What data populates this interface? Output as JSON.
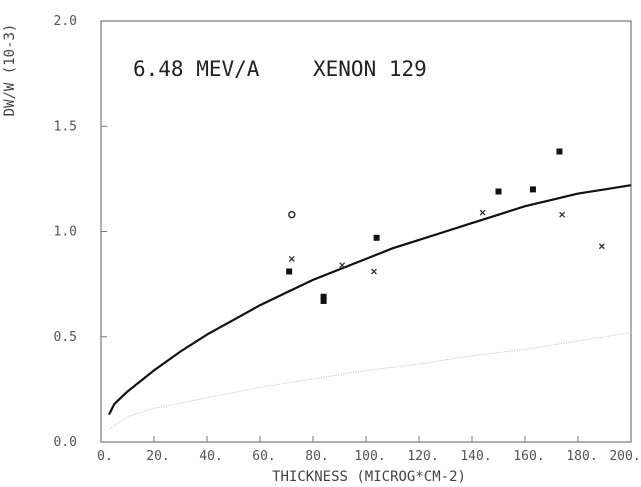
{
  "chart_data": {
    "type": "scatter",
    "xlabel": "THICKNESS (MICROG*CM-2)",
    "ylabel": "DW/W (10-3)",
    "annotation": {
      "energy": "6.48 MEV/A",
      "ion": "XENON 129"
    },
    "xlim": [
      0,
      200
    ],
    "ylim": [
      0,
      2.0
    ],
    "x_ticks": [
      "0.",
      "20.",
      "40.",
      "60.",
      "80.",
      "100.",
      "120.",
      "140.",
      "160.",
      "180.",
      "200."
    ],
    "y_ticks": [
      "0.0",
      "0.5",
      "1.0",
      "1.5",
      "2.0"
    ],
    "grid": false,
    "series": [
      {
        "marker": "filled-square",
        "color": "#111111",
        "points": [
          [
            71,
            0.81
          ],
          [
            84,
            0.69
          ],
          [
            84,
            0.67
          ],
          [
            104,
            0.97
          ],
          [
            150,
            1.19
          ],
          [
            163,
            1.2
          ],
          [
            173,
            1.38
          ]
        ]
      },
      {
        "marker": "cross",
        "color": "#333333",
        "points": [
          [
            72,
            0.87
          ],
          [
            91,
            0.84
          ],
          [
            103,
            0.81
          ],
          [
            144,
            1.09
          ],
          [
            174,
            1.08
          ],
          [
            189,
            0.93
          ]
        ]
      },
      {
        "marker": "circle",
        "color": "#222222",
        "points": [
          [
            72,
            1.08
          ]
        ]
      },
      {
        "marker": "line",
        "color": "#111111",
        "style": "solid",
        "points": [
          [
            3,
            0.13
          ],
          [
            5,
            0.18
          ],
          [
            10,
            0.24
          ],
          [
            20,
            0.34
          ],
          [
            30,
            0.43
          ],
          [
            40,
            0.51
          ],
          [
            50,
            0.58
          ],
          [
            60,
            0.65
          ],
          [
            70,
            0.71
          ],
          [
            80,
            0.77
          ],
          [
            90,
            0.82
          ],
          [
            100,
            0.87
          ],
          [
            110,
            0.92
          ],
          [
            120,
            0.96
          ],
          [
            130,
            1.0
          ],
          [
            140,
            1.04
          ],
          [
            150,
            1.08
          ],
          [
            160,
            1.12
          ],
          [
            170,
            1.15
          ],
          [
            180,
            1.18
          ],
          [
            190,
            1.2
          ],
          [
            200,
            1.22
          ]
        ]
      },
      {
        "marker": "line",
        "color": "#bbbbbb",
        "style": "faint",
        "points": [
          [
            3,
            0.06
          ],
          [
            10,
            0.12
          ],
          [
            20,
            0.16
          ],
          [
            40,
            0.21
          ],
          [
            60,
            0.26
          ],
          [
            80,
            0.3
          ],
          [
            100,
            0.34
          ],
          [
            120,
            0.37
          ],
          [
            140,
            0.41
          ],
          [
            160,
            0.44
          ],
          [
            180,
            0.48
          ],
          [
            200,
            0.52
          ]
        ]
      }
    ]
  }
}
